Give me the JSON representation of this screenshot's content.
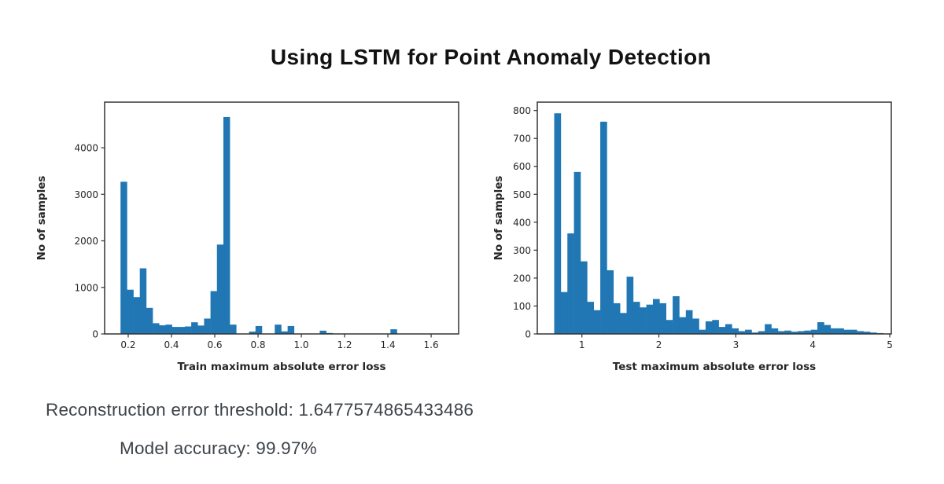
{
  "title": "Using LSTM for Point Anomaly Detection",
  "footer": {
    "threshold": "Reconstruction error threshold: 1.6477574865433486",
    "accuracy": "Model accuracy: 99.97%"
  },
  "colors": {
    "bar": "#2077b4",
    "frame": "#333333",
    "tick_text": "#262626",
    "title_text": "#121212",
    "footer_text": "#3e4349"
  },
  "chart_data": [
    {
      "type": "bar",
      "title": "",
      "xlabel": "Train maximum absolute error loss",
      "ylabel": "No of samples",
      "grid": false,
      "legend": null,
      "bin_start": 0.1645,
      "bin_width": 0.0297,
      "values": [
        3270,
        950,
        790,
        1410,
        560,
        230,
        185,
        200,
        150,
        150,
        160,
        250,
        180,
        330,
        920,
        1920,
        4660,
        200,
        0,
        0,
        50,
        170,
        0,
        0,
        200,
        55,
        170,
        0,
        0,
        0,
        0,
        70,
        20,
        0,
        0,
        0,
        0,
        0,
        0,
        0,
        0,
        0,
        100,
        0,
        0,
        0,
        0,
        0,
        0,
        0
      ],
      "xlim": [
        0.091,
        1.727
      ],
      "ylim": [
        0,
        4980
      ],
      "xticks": [
        0.2,
        0.4,
        0.6,
        0.8,
        1.0,
        1.2,
        1.4,
        1.6
      ],
      "xtick_labels": [
        "0.2",
        "0.4",
        "0.6",
        "0.8",
        "1.0",
        "1.2",
        "1.4",
        "1.6"
      ],
      "yticks": [
        0,
        1000,
        2000,
        3000,
        4000
      ],
      "ytick_labels": [
        "0",
        "1000",
        "2000",
        "3000",
        "4000"
      ]
    },
    {
      "type": "bar",
      "title": "",
      "xlabel": "Test maximum absolute error loss",
      "ylabel": "No of samples",
      "grid": false,
      "legend": null,
      "bin_start": 0.64,
      "bin_width": 0.0855,
      "values": [
        790,
        150,
        360,
        580,
        260,
        115,
        85,
        760,
        228,
        110,
        75,
        205,
        115,
        95,
        105,
        125,
        110,
        50,
        135,
        60,
        85,
        55,
        15,
        45,
        50,
        25,
        35,
        20,
        10,
        15,
        5,
        10,
        35,
        20,
        10,
        12,
        8,
        10,
        12,
        15,
        42,
        32,
        20,
        20,
        15,
        15,
        10,
        8,
        5,
        3
      ],
      "xlim": [
        0.42,
        5.02
      ],
      "ylim": [
        0,
        830
      ],
      "xticks": [
        1,
        2,
        3,
        4,
        5
      ],
      "xtick_labels": [
        "1",
        "2",
        "3",
        "4",
        "5"
      ],
      "yticks": [
        0,
        100,
        200,
        300,
        400,
        500,
        600,
        700,
        800
      ],
      "ytick_labels": [
        "0",
        "100",
        "200",
        "300",
        "400",
        "500",
        "600",
        "700",
        "800"
      ]
    }
  ]
}
